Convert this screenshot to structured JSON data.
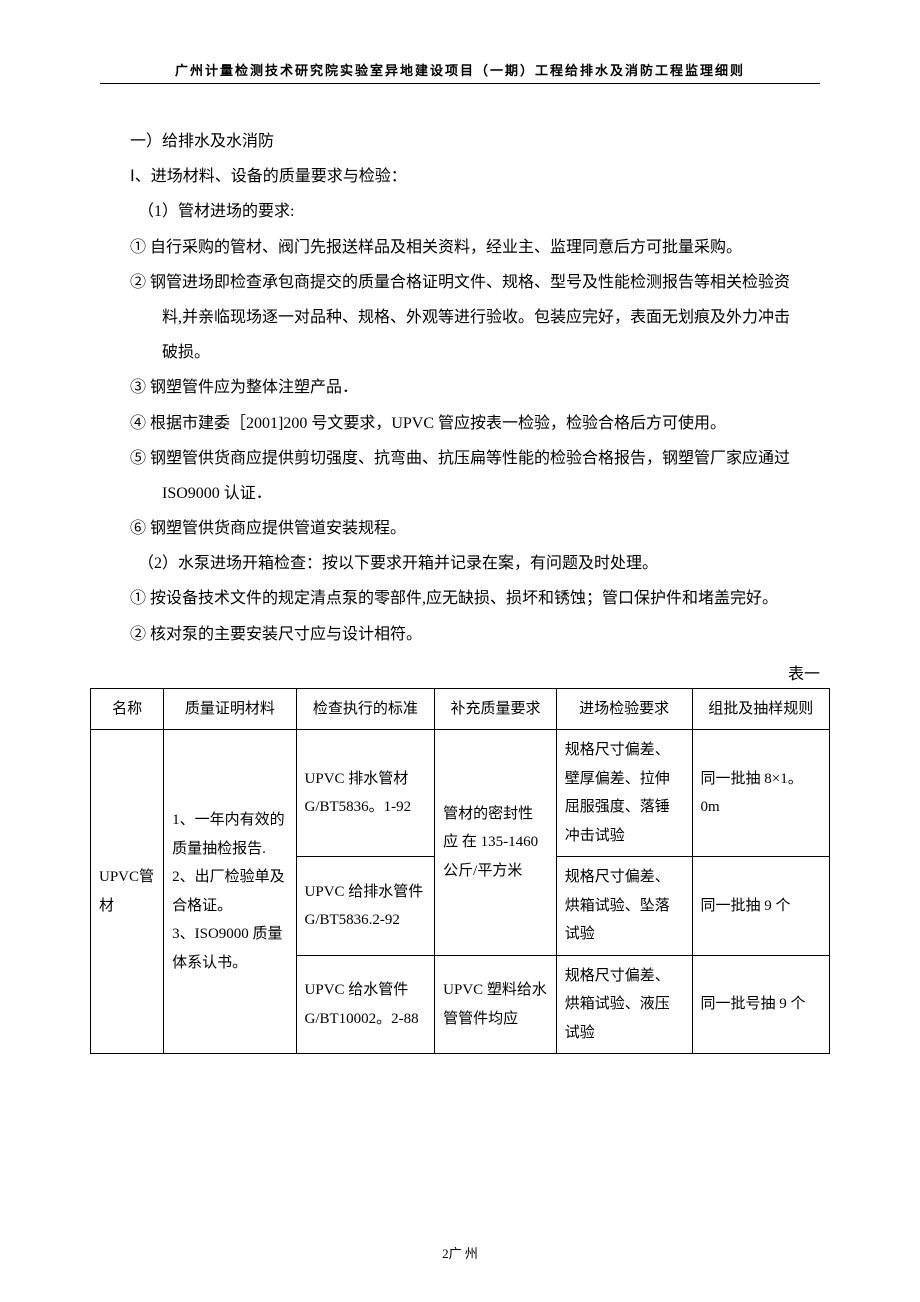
{
  "header": "广州计量检测技术研究院实验室异地建设项目（一期）工程给排水及消防工程监理细则",
  "section_title": "一）给排水及水消防",
  "sub_I": "Ⅰ、进场材料、设备的质量要求与检验：",
  "sub_1": "（1）管材进场的要求:",
  "items1": [
    "① 自行采购的管材、阀门先报送样品及相关资料，经业主、监理同意后方可批量采购。",
    "② 钢管进场即检查承包商提交的质量合格证明文件、规格、型号及性能检测报告等相关检验资料,并亲临现场逐一对品种、规格、外观等进行验收。包装应完好，表面无划痕及外力冲击破损。",
    "③ 钢塑管件应为整体注塑产品．",
    "④ 根据市建委［2001]200 号文要求，UPVC 管应按表一检验，检验合格后方可使用。",
    "⑤ 钢塑管供货商应提供剪切强度、抗弯曲、抗压扁等性能的检验合格报告，钢塑管厂家应通过 ISO9000 认证．",
    "⑥ 钢塑管供货商应提供管道安装规程。"
  ],
  "sub_2": "（2）水泵进场开箱检查：按以下要求开箱并记录在案，有问题及时处理。",
  "items2": [
    "① 按设备技术文件的规定清点泵的零部件,应无缺损、损坏和锈蚀；管口保护件和堵盖完好。",
    "② 核对泵的主要安装尺寸应与设计相符。"
  ],
  "table_label": "表一",
  "table": {
    "headers": [
      "名称",
      "质量证明材料",
      "检查执行的标准",
      "补充质量要求",
      "进场检验要求",
      "组批及抽样规则"
    ],
    "row_name": "UPVC管材",
    "row_qual": "1、一年内有效的质量抽检报告.\n2、出厂检验单及合格证。\n3、ISO9000 质量体系认书。",
    "std1": "UPVC 排水管材G/BT5836。1-92",
    "std2": "UPVC 给排水管件\nG/BT5836.2-92",
    "std3": "UPVC 给水管件G/BT10002。2-88",
    "supp_upper": "管材的密封性应 在 135-1460公斤/平方米",
    "supp_lower": "UPVC 塑料给水管管件均应",
    "insp1": "规格尺寸偏差、壁厚偏差、拉伸屈服强度、落锤冲击试验",
    "insp2": "规格尺寸偏差、烘箱试验、坠落试验",
    "insp3": "规格尺寸偏差、烘箱试验、液压试验",
    "samp1": "同一批抽 8×1。0m",
    "samp2": "同一批抽 9 个",
    "samp3": "同一批号抽 9 个"
  },
  "footer": "2广 州"
}
